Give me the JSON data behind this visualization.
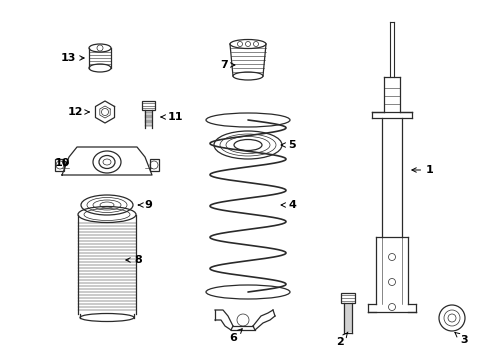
{
  "bg_color": "#ffffff",
  "line_color": "#2a2a2a",
  "label_color": "#000000",
  "figsize": [
    4.89,
    3.6
  ],
  "dpi": 100,
  "xlim": [
    0,
    489
  ],
  "ylim": [
    0,
    360
  ]
}
